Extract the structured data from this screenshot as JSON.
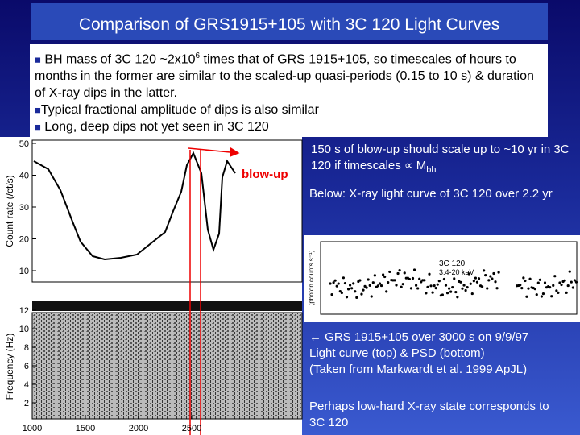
{
  "title": "Comparison of GRS1915+105 with 3C 120 Light Curves",
  "bullets": [
    {
      "before": "BH mass of 3C 120 ~2x10",
      "sup": "6",
      "after": " times that of GRS 1915+105, so timescales of hours to months in the former are similar to the scaled-up quasi-periods (0.15 to 10 s) & duration of X-ray dips in the latter."
    },
    {
      "before": "Typical fractional amplitude of dips is also similar"
    },
    {
      "before": " Long, deep dips not yet seen in 3C 120"
    }
  ],
  "notes": {
    "scale": {
      "before": "150 s of blow-up should scale up to ~10 yr in 3C 120  if timescales ∝ M",
      "sub": "bh"
    },
    "below": "Below: X-ray light curve of 3C 120 over 2.2 yr",
    "grs": [
      "← GRS 1915+105 over 3000 s on 9/9/97",
      "Light curve (top) & PSD (bottom)",
      "(Taken from Markwardt et al. 1999 ApJL)"
    ],
    "perhaps": "Perhaps low-hard X-ray state corresponds to 3C 120"
  },
  "figure": {
    "annotation": "blow-up",
    "top_ylabel": "Count rate (/ct/s)",
    "top_yticks": [
      50,
      40,
      30,
      20,
      10
    ],
    "bottom_ylabel": "Frequency (Hz)",
    "bottom_yticks": [
      12,
      10,
      8,
      6,
      4,
      2
    ],
    "xticks": [
      1000,
      1500,
      2000,
      2500
    ]
  },
  "inset": {
    "label": "3C 120",
    "band": "3.4-20 keV",
    "ylabel": "(photon counts s⁻¹)"
  }
}
